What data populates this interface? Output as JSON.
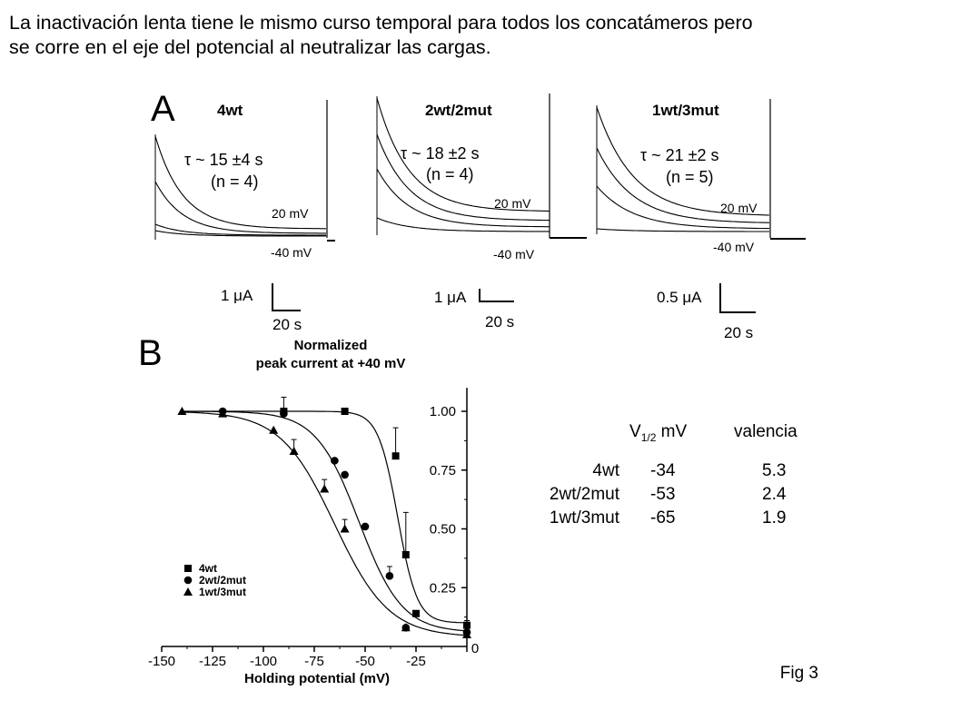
{
  "caption": {
    "line1": "La inactivación lenta tiene le mismo curso temporal para todos los concatámeros pero",
    "line2": "se corre en el eje del potencial al neutralizar las cargas."
  },
  "panel_a": {
    "letter": "A",
    "panels": [
      {
        "title": "4wt",
        "tau": "τ ~ 15 ±4 s",
        "n": "(n = 4)",
        "v_high": "20 mV",
        "v_low": "-40 mV",
        "scale_current": "1 μA",
        "scale_time": "20 s"
      },
      {
        "title": "2wt/2mut",
        "tau": "τ ~ 18 ±2 s",
        "n": "(n = 4)",
        "v_high": "20 mV",
        "v_low": "-40 mV",
        "scale_current": "1 μA",
        "scale_time": "20 s"
      },
      {
        "title": "1wt/3mut",
        "tau": "τ ~ 21 ±2 s",
        "n": "(n = 5)",
        "v_high": "20 mV",
        "v_low": "-40 mV",
        "scale_current": "0.5 μA",
        "scale_time": "20 s"
      }
    ]
  },
  "panel_b": {
    "letter": "B",
    "title_line1": "Normalized",
    "title_line2": "peak current at +40 mV",
    "xlabel": "Holding potential (mV)"
  },
  "chart_data": {
    "type": "scatter",
    "title": "Normalized peak current at +40 mV",
    "xlabel": "Holding potential (mV)",
    "ylabel": "",
    "xlim": [
      -150,
      0
    ],
    "ylim": [
      0,
      1.1
    ],
    "x_ticks": [
      "-150",
      "-125",
      "-100",
      "-75",
      "-50",
      "-25",
      "0"
    ],
    "y_ticks": [
      "0.25",
      "0.50",
      "0.75",
      "1.00"
    ],
    "legend_position": "bottom-left",
    "series": [
      {
        "name": "4wt",
        "marker": "square",
        "v_half": -34,
        "slope": 5.3,
        "bottom": 0.1,
        "x": [
          -90,
          -60,
          -35,
          -30,
          -25,
          0
        ],
        "y": [
          1.0,
          1.0,
          0.81,
          0.39,
          0.14,
          0.09
        ],
        "err": [
          0.06,
          0.0,
          0.12,
          0.18,
          0.0,
          0.02
        ]
      },
      {
        "name": "2wt/2mut",
        "marker": "circle",
        "v_half": -53,
        "slope": 2.4,
        "bottom": 0.06,
        "x": [
          -120,
          -90,
          -65,
          -60,
          -50,
          -38,
          -30,
          0
        ],
        "y": [
          1.0,
          0.99,
          0.79,
          0.73,
          0.51,
          0.3,
          0.08,
          0.06
        ],
        "err": [
          0.0,
          0.0,
          0.0,
          0.0,
          0.0,
          0.04,
          0.0,
          0.0
        ]
      },
      {
        "name": "1wt/3mut",
        "marker": "triangle",
        "v_half": -65,
        "slope": 1.9,
        "bottom": 0.04,
        "x": [
          -140,
          -120,
          -95,
          -85,
          -70,
          -60,
          -30,
          0
        ],
        "y": [
          1.0,
          0.99,
          0.92,
          0.83,
          0.67,
          0.5,
          0.08,
          0.05
        ],
        "err": [
          0.0,
          0.0,
          0.0,
          0.05,
          0.04,
          0.04,
          0.0,
          0.0
        ]
      }
    ]
  },
  "table": {
    "header_v": "V",
    "header_v_sub": "1/2",
    "header_v_unit": " mV",
    "header_val": "valencia",
    "rows": [
      {
        "name": "4wt",
        "v": "-34",
        "val": "5.3"
      },
      {
        "name": "2wt/2mut",
        "v": "-53",
        "val": "2.4"
      },
      {
        "name": "1wt/3mut",
        "v": "-65",
        "val": "1.9"
      }
    ]
  },
  "figure_label": "Fig 3"
}
